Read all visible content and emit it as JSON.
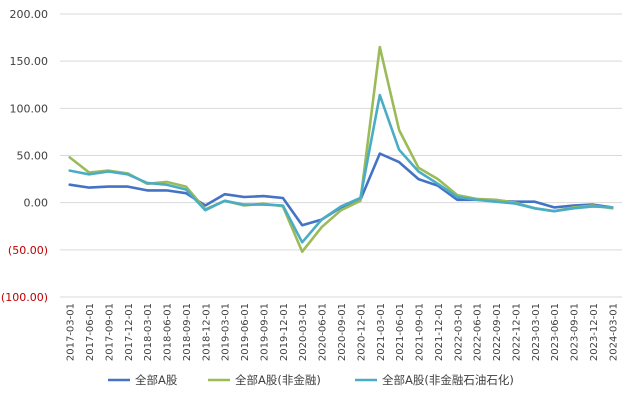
{
  "chart_data": {
    "type": "line",
    "x": [
      "2017-03-01",
      "2017-06-01",
      "2017-09-01",
      "2017-12-01",
      "2018-03-01",
      "2018-06-01",
      "2018-09-01",
      "2018-12-01",
      "2019-03-01",
      "2019-06-01",
      "2019-09-01",
      "2019-12-01",
      "2020-03-01",
      "2020-06-01",
      "2020-09-01",
      "2020-12-01",
      "2021-03-01",
      "2021-06-01",
      "2021-09-01",
      "2021-12-01",
      "2022-03-01",
      "2022-06-01",
      "2022-09-01",
      "2022-12-01",
      "2023-03-01",
      "2023-06-01",
      "2023-09-01",
      "2023-12-01",
      "2024-03-01"
    ],
    "y_ticks": [
      "200.00",
      "150.00",
      "100.00",
      "50.00",
      "0.00",
      "(50.00)",
      "(100.00)"
    ],
    "y_tick_values": [
      200,
      150,
      100,
      50,
      0,
      -50,
      -100
    ],
    "ylim": [
      -100,
      200
    ],
    "negative_tick_color": "#c00000",
    "grid": true,
    "legend_position": "bottom",
    "series": [
      {
        "name": "全部A股",
        "color": "#4472c4",
        "values": [
          19,
          16,
          17,
          17,
          13,
          13,
          10,
          -3,
          9,
          6,
          7,
          5,
          -24,
          -18,
          -5,
          3,
          52,
          43,
          25,
          18,
          3,
          3,
          2,
          1,
          1,
          -5,
          -3,
          -2,
          -5
        ]
      },
      {
        "name": "全部A股(非金融)",
        "color": "#9bbb59",
        "values": [
          48,
          32,
          34,
          31,
          20,
          22,
          17,
          -7,
          2,
          -3,
          -1,
          -4,
          -52,
          -26,
          -8,
          2,
          165,
          77,
          37,
          25,
          8,
          4,
          3,
          0,
          -6,
          -9,
          -5,
          -3,
          -6
        ]
      },
      {
        "name": "全部A股(非金融石油石化)",
        "color": "#4bacc6",
        "values": [
          34,
          30,
          33,
          30,
          21,
          19,
          14,
          -8,
          2,
          -2,
          -2,
          -3,
          -42,
          -18,
          -4,
          5,
          114,
          56,
          33,
          20,
          6,
          3,
          1,
          -1,
          -6,
          -9,
          -6,
          -4,
          -5
        ]
      }
    ]
  }
}
